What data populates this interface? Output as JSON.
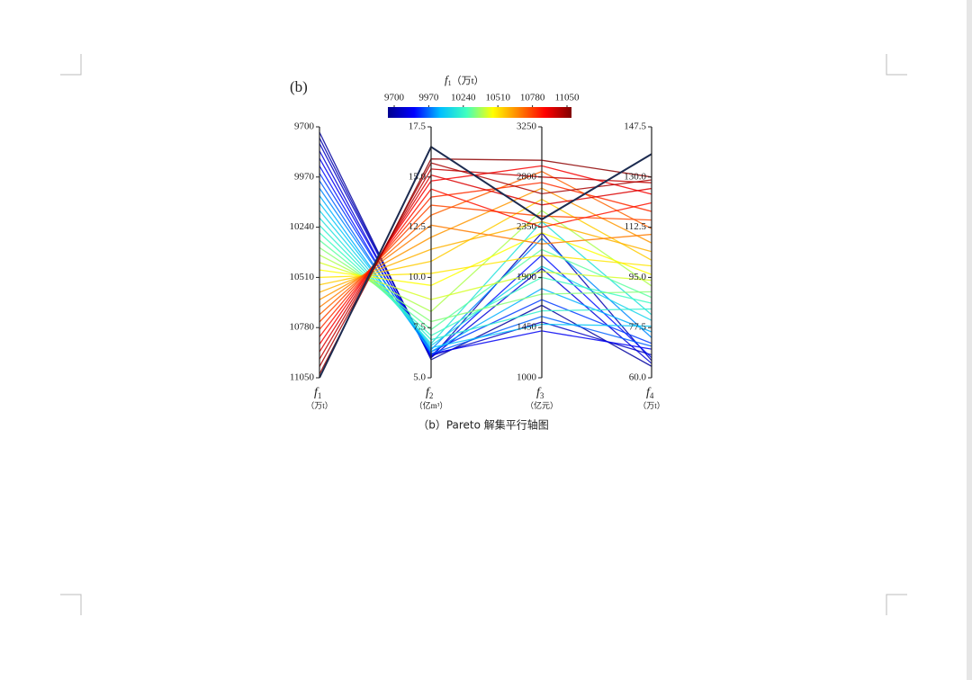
{
  "panel_label": "(b)",
  "caption": "（b）Pareto 解集平行轴图",
  "chart_data": {
    "type": "parallel",
    "axes": [
      {
        "symbol": "f",
        "sub": "1",
        "unit": "（万t）",
        "lim": [
          11050,
          9700
        ],
        "ticks": [
          9700,
          9970,
          10240,
          10510,
          10780,
          11050
        ]
      },
      {
        "symbol": "f",
        "sub": "2",
        "unit": "（亿m³）",
        "lim": [
          5,
          17.5
        ],
        "ticks": [
          {
            "value": 5,
            "label": "5.0"
          },
          7.5,
          {
            "value": 10,
            "label": "10.0"
          },
          12.5,
          {
            "value": 15,
            "label": "15.0"
          },
          17.5
        ]
      },
      {
        "symbol": "f",
        "sub": "3",
        "unit": "（亿元）",
        "lim": [
          1000,
          3250
        ],
        "ticks": [
          1000,
          1450,
          1900,
          2350,
          2800,
          3250
        ]
      },
      {
        "symbol": "f",
        "sub": "4",
        "unit": "（万t）",
        "lim": [
          60,
          147.5
        ],
        "ticks": [
          {
            "value": 60,
            "label": "60.0"
          },
          77.5,
          {
            "value": 95,
            "label": "95.0"
          },
          112.5,
          {
            "value": 130,
            "label": "130.0"
          },
          147.5
        ]
      }
    ],
    "colorbar": {
      "symbol": "f",
      "sub": "1",
      "unit": "（万t）",
      "lim": [
        9700,
        11050
      ],
      "ticks": [
        9700,
        9970,
        10240,
        10510,
        10780,
        11050
      ],
      "colors": [
        "#00008f",
        "#0000ff",
        "#00bfff",
        "#40ffbf",
        "#ffff00",
        "#ff8000",
        "#ff0000",
        "#800000"
      ]
    },
    "solutions": [
      [
        9730,
        5.9,
        1650,
        64
      ],
      [
        9760,
        6.0,
        2300,
        66
      ],
      [
        9790,
        6.1,
        1500,
        68
      ],
      [
        9830,
        6.0,
        1980,
        65
      ],
      [
        9870,
        6.2,
        1420,
        70
      ],
      [
        9910,
        6.1,
        2100,
        67
      ],
      [
        9950,
        6.3,
        1700,
        72
      ],
      [
        9990,
        6.2,
        1550,
        71
      ],
      [
        10030,
        6.4,
        2250,
        74
      ],
      [
        10070,
        6.3,
        1800,
        76
      ],
      [
        10110,
        6.5,
        1480,
        78
      ],
      [
        10150,
        6.6,
        2000,
        80
      ],
      [
        10190,
        6.7,
        2400,
        82
      ],
      [
        10230,
        6.9,
        1600,
        84
      ],
      [
        10270,
        7.1,
        1900,
        86
      ],
      [
        10310,
        7.4,
        2150,
        88
      ],
      [
        10350,
        7.8,
        1750,
        90
      ],
      [
        10390,
        8.3,
        2500,
        92
      ],
      [
        10430,
        8.9,
        1950,
        94
      ],
      [
        10470,
        9.6,
        2300,
        96
      ],
      [
        10510,
        10.2,
        2100,
        99
      ],
      [
        10550,
        10.8,
        2600,
        101
      ],
      [
        10590,
        11.4,
        2400,
        104
      ],
      [
        10630,
        12.0,
        2700,
        107
      ],
      [
        10670,
        12.6,
        2200,
        110
      ],
      [
        10710,
        13.1,
        2850,
        112
      ],
      [
        10750,
        13.6,
        2450,
        115
      ],
      [
        10790,
        14.0,
        2750,
        118
      ],
      [
        10830,
        14.4,
        2350,
        121
      ],
      [
        10870,
        14.8,
        2900,
        124
      ],
      [
        10910,
        15.1,
        2550,
        126
      ],
      [
        10950,
        15.4,
        2800,
        128
      ],
      [
        10990,
        15.7,
        2650,
        129
      ],
      [
        11030,
        15.9,
        2950,
        130
      ]
    ],
    "highlight": {
      "color": "#1c2b50",
      "values": [
        11050,
        16.5,
        2420,
        138
      ]
    }
  }
}
